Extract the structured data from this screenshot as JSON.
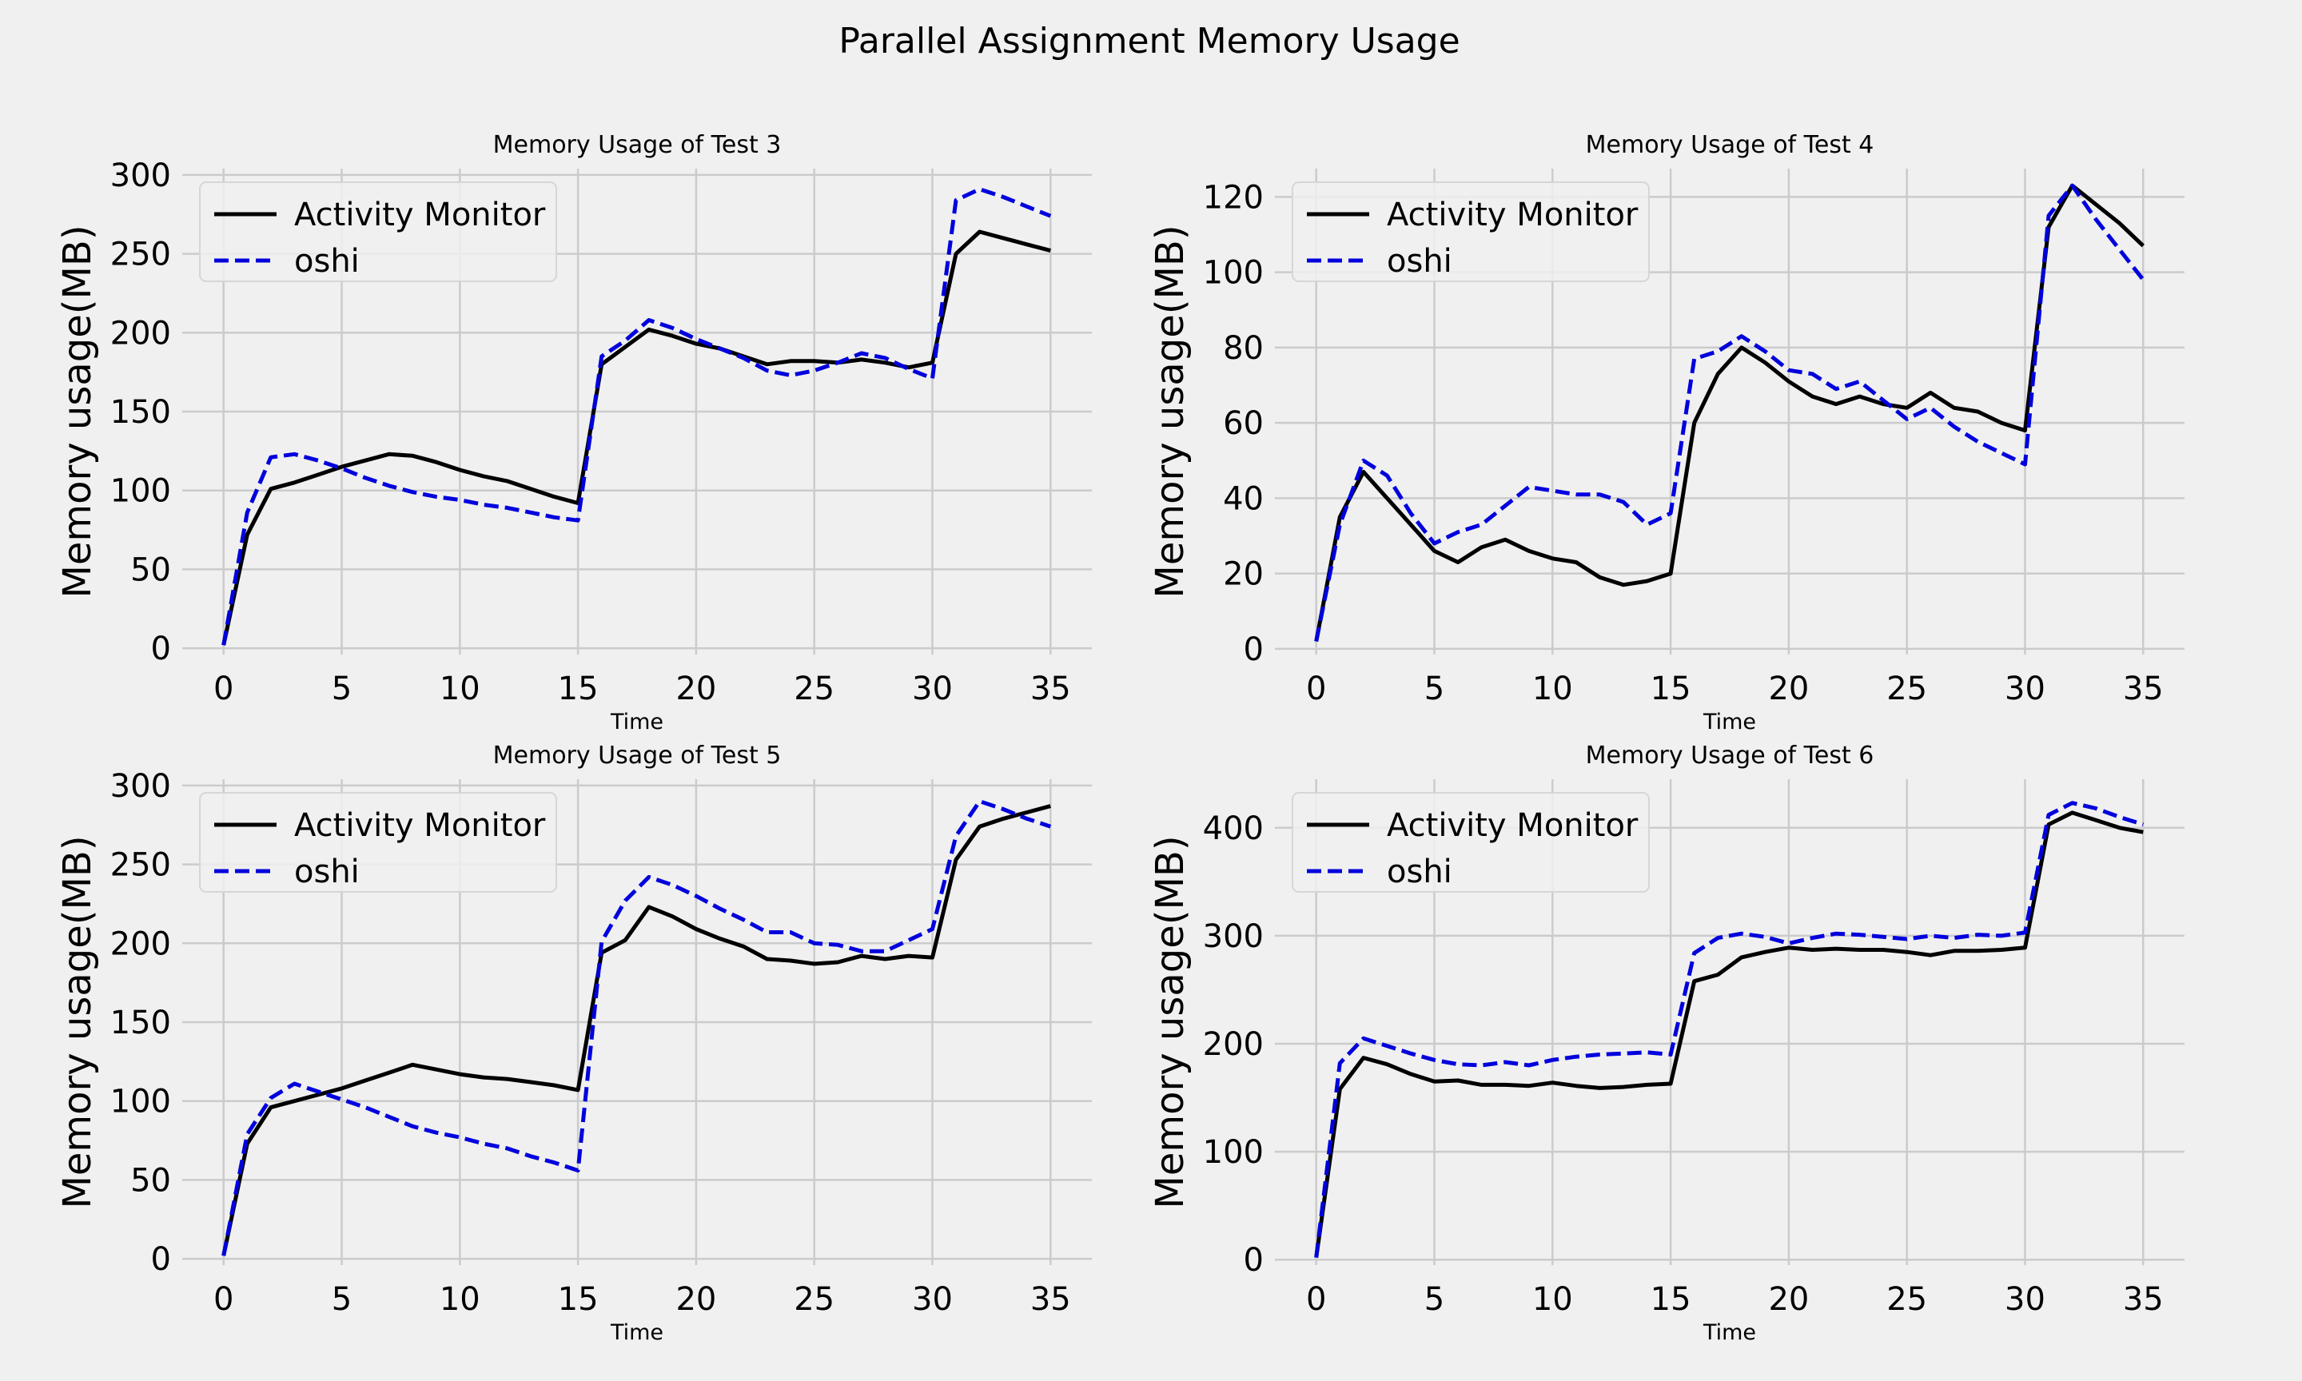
{
  "figure": {
    "title": "Parallel Assignment Memory Usage",
    "background": "#f0f0f0",
    "grid_color": "#cbcbcb"
  },
  "chart_data": [
    {
      "type": "line",
      "title": "Memory Usage of Test 3",
      "xlabel": "Time",
      "ylabel": "Memory usage(MB)",
      "xlim": [
        -1.75,
        36.75
      ],
      "ylim": [
        -4,
        304
      ],
      "xticks": [
        0,
        5,
        10,
        15,
        20,
        25,
        30,
        35
      ],
      "yticks": [
        0,
        50,
        100,
        150,
        200,
        250,
        300
      ],
      "grid": true,
      "legend_position": "top-left",
      "x": [
        0,
        1,
        2,
        3,
        4,
        5,
        6,
        7,
        8,
        9,
        10,
        11,
        12,
        13,
        14,
        15,
        16,
        17,
        18,
        19,
        20,
        21,
        22,
        23,
        24,
        25,
        26,
        27,
        28,
        29,
        30,
        31,
        32,
        33,
        34,
        35
      ],
      "series": [
        {
          "name": "Activity Monitor",
          "color": "#000000",
          "dash": "solid",
          "values": [
            2,
            72,
            101,
            105,
            110,
            115,
            119,
            123,
            122,
            118,
            113,
            109,
            106,
            101,
            96,
            92,
            180,
            191,
            202,
            198,
            193,
            190,
            185,
            180,
            182,
            182,
            181,
            183,
            181,
            178,
            181,
            250,
            264,
            260,
            256,
            252
          ]
        },
        {
          "name": "oshi",
          "color": "#0000dd",
          "dash": "dashed",
          "values": [
            2,
            86,
            121,
            123,
            119,
            114,
            108,
            103,
            99,
            96,
            94,
            91,
            89,
            86,
            83,
            81,
            185,
            195,
            208,
            203,
            196,
            190,
            184,
            176,
            173,
            176,
            181,
            187,
            184,
            177,
            171,
            284,
            291,
            286,
            280,
            274
          ]
        }
      ]
    },
    {
      "type": "line",
      "title": "Memory Usage of Test 4",
      "xlabel": "Time",
      "ylabel": "Memory usage(MB)",
      "xlim": [
        -1.75,
        36.75
      ],
      "ylim": [
        -1.5,
        127.5
      ],
      "xticks": [
        0,
        5,
        10,
        15,
        20,
        25,
        30,
        35
      ],
      "yticks": [
        0,
        20,
        40,
        60,
        80,
        100,
        120
      ],
      "grid": true,
      "legend_position": "top-left",
      "x": [
        0,
        1,
        2,
        3,
        4,
        5,
        6,
        7,
        8,
        9,
        10,
        11,
        12,
        13,
        14,
        15,
        16,
        17,
        18,
        19,
        20,
        21,
        22,
        23,
        24,
        25,
        26,
        27,
        28,
        29,
        30,
        31,
        32,
        33,
        34,
        35
      ],
      "series": [
        {
          "name": "Activity Monitor",
          "color": "#000000",
          "dash": "solid",
          "values": [
            2,
            35,
            47,
            40,
            33,
            26,
            23,
            27,
            29,
            26,
            24,
            23,
            19,
            17,
            18,
            20,
            60,
            73,
            80,
            76,
            71,
            67,
            65,
            67,
            65,
            64,
            68,
            64,
            63,
            60,
            58,
            112,
            123,
            118,
            113,
            107
          ]
        },
        {
          "name": "oshi",
          "color": "#0000dd",
          "dash": "dashed",
          "values": [
            2,
            33,
            50,
            46,
            36,
            28,
            31,
            33,
            38,
            43,
            42,
            41,
            41,
            39,
            33,
            36,
            77,
            79,
            83,
            79,
            74,
            73,
            69,
            71,
            66,
            61,
            64,
            59,
            55,
            52,
            49,
            115,
            123,
            114,
            106,
            98
          ]
        }
      ]
    },
    {
      "type": "line",
      "title": "Memory Usage of Test 5",
      "xlabel": "Time",
      "ylabel": "Memory usage(MB)",
      "xlim": [
        -1.75,
        36.75
      ],
      "ylim": [
        -4,
        304
      ],
      "xticks": [
        0,
        5,
        10,
        15,
        20,
        25,
        30,
        35
      ],
      "yticks": [
        0,
        50,
        100,
        150,
        200,
        250,
        300
      ],
      "grid": true,
      "legend_position": "top-left",
      "x": [
        0,
        1,
        2,
        3,
        4,
        5,
        6,
        7,
        8,
        9,
        10,
        11,
        12,
        13,
        14,
        15,
        16,
        17,
        18,
        19,
        20,
        21,
        22,
        23,
        24,
        25,
        26,
        27,
        28,
        29,
        30,
        31,
        32,
        33,
        34,
        35
      ],
      "series": [
        {
          "name": "Activity Monitor",
          "color": "#000000",
          "dash": "solid",
          "values": [
            2,
            73,
            96,
            100,
            104,
            108,
            113,
            118,
            123,
            120,
            117,
            115,
            114,
            112,
            110,
            107,
            194,
            202,
            223,
            217,
            209,
            203,
            198,
            190,
            189,
            187,
            188,
            192,
            190,
            192,
            191,
            253,
            274,
            279,
            283,
            287
          ]
        },
        {
          "name": "oshi",
          "color": "#0000dd",
          "dash": "dashed",
          "values": [
            2,
            79,
            102,
            111,
            106,
            101,
            96,
            90,
            84,
            80,
            77,
            73,
            70,
            65,
            61,
            56,
            201,
            227,
            242,
            237,
            230,
            222,
            215,
            207,
            207,
            200,
            199,
            195,
            195,
            202,
            209,
            268,
            290,
            285,
            279,
            274
          ]
        }
      ]
    },
    {
      "type": "line",
      "title": "Memory Usage of Test 6",
      "xlabel": "Time",
      "ylabel": "Memory usage(MB)",
      "xlim": [
        -1.75,
        36.75
      ],
      "ylim": [
        -5,
        445
      ],
      "xticks": [
        0,
        5,
        10,
        15,
        20,
        25,
        30,
        35
      ],
      "yticks": [
        0,
        100,
        200,
        300,
        400
      ],
      "grid": true,
      "legend_position": "top-left",
      "x": [
        0,
        1,
        2,
        3,
        4,
        5,
        6,
        7,
        8,
        9,
        10,
        11,
        12,
        13,
        14,
        15,
        16,
        17,
        18,
        19,
        20,
        21,
        22,
        23,
        24,
        25,
        26,
        27,
        28,
        29,
        30,
        31,
        32,
        33,
        34,
        35
      ],
      "series": [
        {
          "name": "Activity Monitor",
          "color": "#000000",
          "dash": "solid",
          "values": [
            2,
            158,
            187,
            181,
            172,
            165,
            166,
            162,
            162,
            161,
            164,
            161,
            159,
            160,
            162,
            163,
            258,
            264,
            280,
            285,
            289,
            287,
            288,
            287,
            287,
            285,
            282,
            286,
            286,
            287,
            289,
            403,
            414,
            407,
            400,
            396
          ]
        },
        {
          "name": "oshi",
          "color": "#0000dd",
          "dash": "dashed",
          "values": [
            2,
            182,
            205,
            198,
            191,
            185,
            181,
            180,
            183,
            180,
            185,
            188,
            190,
            191,
            192,
            190,
            284,
            298,
            302,
            299,
            293,
            298,
            302,
            301,
            299,
            297,
            300,
            298,
            301,
            300,
            303,
            412,
            423,
            418,
            410,
            403
          ]
        }
      ]
    }
  ]
}
